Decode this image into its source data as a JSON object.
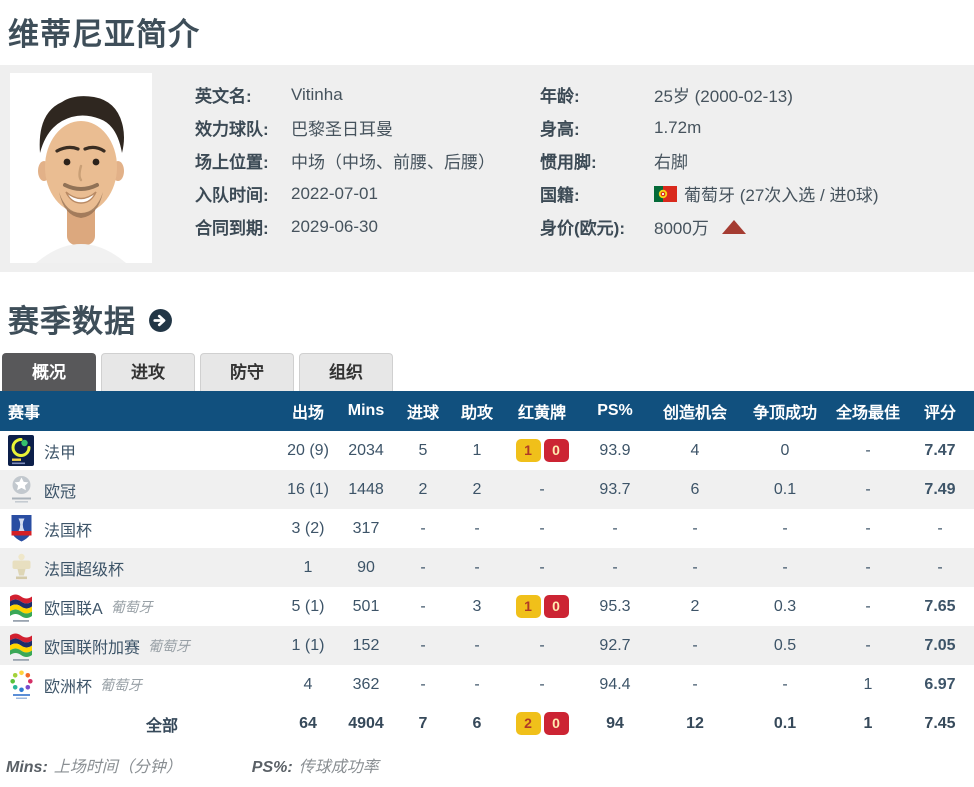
{
  "page": {
    "title": "维蒂尼亚简介"
  },
  "profile": {
    "left": [
      {
        "label": "英文名:",
        "value": "Vitinha"
      },
      {
        "label": "效力球队:",
        "value": "巴黎圣日耳曼"
      },
      {
        "label": "场上位置:",
        "value": "中场（中场、前腰、后腰）"
      },
      {
        "label": "入队时间:",
        "value": "2022-07-01"
      },
      {
        "label": "合同到期:",
        "value": "2029-06-30"
      }
    ],
    "right": [
      {
        "label": "年龄:",
        "value": "25岁  (2000-02-13)"
      },
      {
        "label": "身高:",
        "value": "1.72m"
      },
      {
        "label": "惯用脚:",
        "value": "右脚"
      },
      {
        "label": "国籍:",
        "value": "葡萄牙 (27次入选 / 进0球)",
        "icon": "portugal-flag-icon"
      },
      {
        "label": "身价(欧元):",
        "value": "8000万",
        "trend": "up"
      }
    ]
  },
  "season": {
    "title": "赛季数据",
    "arrow_icon": "circle-arrow-right-icon"
  },
  "tabs": [
    {
      "label": "概况",
      "active": true
    },
    {
      "label": "进攻",
      "active": false
    },
    {
      "label": "防守",
      "active": false
    },
    {
      "label": "组织",
      "active": false
    }
  ],
  "table": {
    "headers": [
      "赛事",
      "出场",
      "Mins",
      "进球",
      "助攻",
      "红黄牌",
      "PS%",
      "创造机会",
      "争顶成功",
      "全场最佳",
      "评分"
    ],
    "rows": [
      {
        "logo": "ligue1-logo",
        "competition": "法甲",
        "team": "",
        "apps": "20 (9)",
        "mins": "2034",
        "goals": "5",
        "assists": "1",
        "cards": {
          "yellow": "1",
          "red": "0"
        },
        "ps": "93.9",
        "chances": "4",
        "aerial": "0",
        "motm": "-",
        "rating": "7.47"
      },
      {
        "logo": "champions-league-logo",
        "competition": "欧冠",
        "team": "",
        "apps": "16 (1)",
        "mins": "1448",
        "goals": "2",
        "assists": "2",
        "cards": null,
        "ps": "93.7",
        "chances": "6",
        "aerial": "0.1",
        "motm": "-",
        "rating": "7.49"
      },
      {
        "logo": "coupe-de-france-logo",
        "competition": "法国杯",
        "team": "",
        "apps": "3 (2)",
        "mins": "317",
        "goals": "-",
        "assists": "-",
        "cards": null,
        "ps": "-",
        "chances": "-",
        "aerial": "-",
        "motm": "-",
        "rating": "-"
      },
      {
        "logo": "trophee-des-champions-logo",
        "competition": "法国超级杯",
        "team": "",
        "apps": "1",
        "mins": "90",
        "goals": "-",
        "assists": "-",
        "cards": null,
        "ps": "-",
        "chances": "-",
        "aerial": "-",
        "motm": "-",
        "rating": "-"
      },
      {
        "logo": "nations-league-logo",
        "competition": "欧国联A",
        "team": "葡萄牙",
        "apps": "5 (1)",
        "mins": "501",
        "goals": "-",
        "assists": "3",
        "cards": {
          "yellow": "1",
          "red": "0"
        },
        "ps": "95.3",
        "chances": "2",
        "aerial": "0.3",
        "motm": "-",
        "rating": "7.65"
      },
      {
        "logo": "nations-league-logo",
        "competition": "欧国联附加赛",
        "team": "葡萄牙",
        "apps": "1 (1)",
        "mins": "152",
        "goals": "-",
        "assists": "-",
        "cards": null,
        "ps": "92.7",
        "chances": "-",
        "aerial": "0.5",
        "motm": "-",
        "rating": "7.05"
      },
      {
        "logo": "euro-logo",
        "competition": "欧洲杯",
        "team": "葡萄牙",
        "apps": "4",
        "mins": "362",
        "goals": "-",
        "assists": "-",
        "cards": null,
        "ps": "94.4",
        "chances": "-",
        "aerial": "-",
        "motm": "1",
        "rating": "6.97"
      }
    ],
    "total": {
      "label": "全部",
      "apps": "64",
      "mins": "4904",
      "goals": "7",
      "assists": "6",
      "cards": {
        "yellow": "2",
        "red": "0"
      },
      "ps": "94",
      "chances": "12",
      "aerial": "0.1",
      "motm": "1",
      "rating": "7.45"
    }
  },
  "legend": [
    {
      "term": "Mins:",
      "desc": "上场时间（分钟）"
    },
    {
      "term": "PS%:",
      "desc": "传球成功率"
    }
  ],
  "colors": {
    "header_blue": "#11507e",
    "rating_orange": "#e2541b",
    "yellow_card": "#f0c01a",
    "red_card": "#cc2433",
    "value_up_red": "#a53c32",
    "title_slate": "#3e4e59"
  }
}
